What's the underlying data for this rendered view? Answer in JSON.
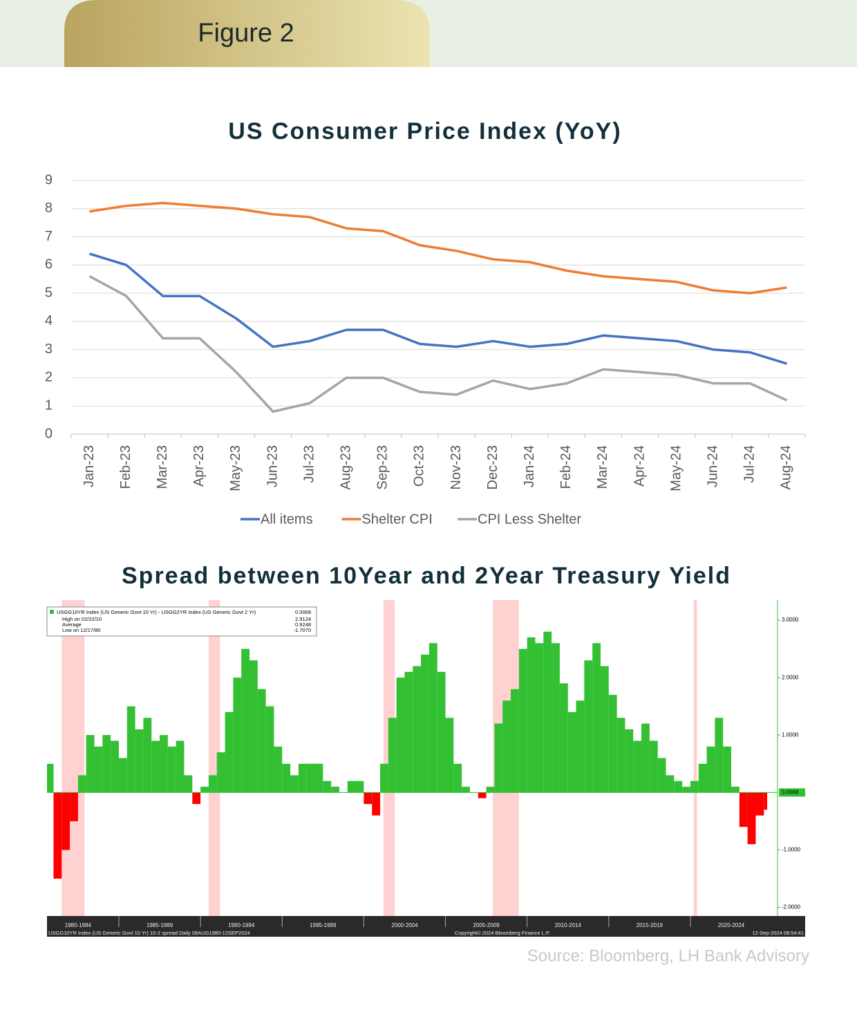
{
  "header": {
    "title": "Figure 2"
  },
  "chart_data": [
    {
      "type": "line",
      "title": "US Consumer Price Index (YoY)",
      "categories": [
        "Jan-23",
        "Feb-23",
        "Mar-23",
        "Apr-23",
        "May-23",
        "Jun-23",
        "Jul-23",
        "Aug-23",
        "Sep-23",
        "Oct-23",
        "Nov-23",
        "Dec-23",
        "Jan-24",
        "Feb-24",
        "Mar-24",
        "Apr-24",
        "May-24",
        "Jun-24",
        "Jul-24",
        "Aug-24"
      ],
      "series": [
        {
          "name": "All items",
          "color": "#4472c4",
          "values": [
            6.4,
            6.0,
            4.9,
            4.9,
            4.1,
            3.1,
            3.3,
            3.7,
            3.7,
            3.2,
            3.1,
            3.3,
            3.1,
            3.2,
            3.5,
            3.4,
            3.3,
            3.0,
            2.9,
            2.5
          ]
        },
        {
          "name": "Shelter CPI",
          "color": "#ed7d31",
          "values": [
            7.9,
            8.1,
            8.2,
            8.1,
            8.0,
            7.8,
            7.7,
            7.3,
            7.2,
            6.7,
            6.5,
            6.2,
            6.1,
            5.8,
            5.6,
            5.5,
            5.4,
            5.1,
            5.0,
            5.2
          ]
        },
        {
          "name": "CPI Less Shelter",
          "color": "#a5a5a5",
          "values": [
            5.6,
            4.9,
            3.4,
            3.4,
            2.2,
            0.8,
            1.1,
            2.0,
            2.0,
            1.5,
            1.4,
            1.9,
            1.6,
            1.8,
            2.3,
            2.2,
            2.1,
            1.8,
            1.8,
            1.2
          ]
        }
      ],
      "ylim": [
        0,
        9
      ],
      "yticks": [
        0,
        1,
        2,
        3,
        4,
        5,
        6,
        7,
        8,
        9
      ],
      "grid": true,
      "legend": "bottom"
    },
    {
      "type": "spread",
      "title": "Spread between 10Year and 2Year Treasury Yield",
      "legend_box": {
        "series": "USGG10YR Index (US Generic Govt 10 Yr) - USGG2YR Index (US Generic Govt 2 Yr)",
        "last": "0.0068",
        "rows": [
          [
            "High on 02/22/10",
            "2.9124"
          ],
          [
            "Average",
            "0.9248"
          ],
          [
            "Low on 12/17/80",
            "-1.7070"
          ]
        ]
      },
      "x": [
        1980.6,
        1981.0,
        1981.5,
        1982.0,
        1982.5,
        1983.0,
        1983.5,
        1984.0,
        1984.5,
        1985.0,
        1985.5,
        1986.0,
        1986.5,
        1987.0,
        1987.5,
        1988.0,
        1988.5,
        1989.0,
        1989.5,
        1990.0,
        1990.5,
        1991.0,
        1991.5,
        1992.0,
        1992.5,
        1993.0,
        1993.5,
        1994.0,
        1994.5,
        1995.0,
        1995.5,
        1996.0,
        1996.5,
        1997.0,
        1997.5,
        1998.0,
        1998.5,
        1999.0,
        1999.5,
        2000.0,
        2000.5,
        2001.0,
        2001.5,
        2002.0,
        2002.5,
        2003.0,
        2003.5,
        2004.0,
        2004.5,
        2005.0,
        2005.5,
        2006.0,
        2006.5,
        2007.0,
        2007.5,
        2008.0,
        2008.5,
        2009.0,
        2009.5,
        2010.0,
        2010.5,
        2011.0,
        2011.5,
        2012.0,
        2012.5,
        2013.0,
        2013.5,
        2014.0,
        2014.5,
        2015.0,
        2015.5,
        2016.0,
        2016.5,
        2017.0,
        2017.5,
        2018.0,
        2018.5,
        2019.0,
        2019.5,
        2020.0,
        2020.5,
        2021.0,
        2021.5,
        2022.0,
        2022.5,
        2023.0,
        2023.5,
        2024.0,
        2024.5,
        2024.7
      ],
      "values": [
        0.5,
        -1.5,
        -1.0,
        -0.5,
        0.3,
        1.0,
        0.8,
        1.0,
        0.9,
        0.6,
        1.5,
        1.1,
        1.3,
        0.9,
        1.0,
        0.8,
        0.9,
        0.3,
        -0.2,
        0.1,
        0.3,
        0.7,
        1.4,
        2.0,
        2.5,
        2.3,
        1.8,
        1.5,
        0.8,
        0.5,
        0.3,
        0.5,
        0.5,
        0.5,
        0.2,
        0.1,
        0.0,
        0.2,
        0.2,
        -0.2,
        -0.4,
        0.5,
        1.3,
        2.0,
        2.1,
        2.2,
        2.4,
        2.6,
        2.1,
        1.3,
        0.5,
        0.1,
        0.0,
        -0.1,
        0.1,
        1.2,
        1.6,
        1.8,
        2.5,
        2.7,
        2.6,
        2.8,
        2.6,
        1.9,
        1.4,
        1.6,
        2.3,
        2.6,
        2.2,
        1.7,
        1.3,
        1.1,
        0.9,
        1.2,
        0.9,
        0.6,
        0.3,
        0.2,
        0.1,
        0.2,
        0.5,
        0.8,
        1.3,
        0.8,
        0.1,
        -0.6,
        -0.9,
        -0.4,
        -0.3,
        0.0068
      ],
      "last_label": "0.0068",
      "positive_color": "#33c033",
      "negative_color": "#ff0000",
      "recessions": [
        [
          1981.5,
          1982.9
        ],
        [
          1990.5,
          1991.2
        ],
        [
          2001.2,
          2001.9
        ],
        [
          2007.9,
          2009.5
        ],
        [
          2020.2,
          2020.4
        ]
      ],
      "xlim": [
        1980.6,
        2024.7
      ],
      "xticks": [
        {
          "value": 1980,
          "label": "1980-1984"
        },
        {
          "value": 1985,
          "label": "1985-1989"
        },
        {
          "value": 1990,
          "label": "1990-1994"
        },
        {
          "value": 1995,
          "label": "1995-1999"
        },
        {
          "value": 2000,
          "label": "2000-2004"
        },
        {
          "value": 2005,
          "label": "2005-2009"
        },
        {
          "value": 2010,
          "label": "2010-2014"
        },
        {
          "value": 2015,
          "label": "2015-2019"
        },
        {
          "value": 2020,
          "label": "2020-2024"
        }
      ],
      "ylim": [
        -2.15,
        3.35
      ],
      "yticks": [
        {
          "value": 3,
          "label": "3.0000"
        },
        {
          "value": 2,
          "label": "2.0000"
        },
        {
          "value": 1,
          "label": "1.0000"
        },
        {
          "value": -1,
          "label": "-1.0000"
        },
        {
          "value": -2,
          "label": "-2.0000"
        }
      ],
      "footer": {
        "left": "USGG10YR Index (US Generic Govt 10 Yr) 10-2 spread  Daily 08AUG1980-12SEP2024",
        "center": "Copyright© 2024 Bloomberg Finance L.P.",
        "right": "12-Sep-2024 08:54:41"
      }
    }
  ],
  "source": "Source: Bloomberg,  LH Bank Advisory"
}
